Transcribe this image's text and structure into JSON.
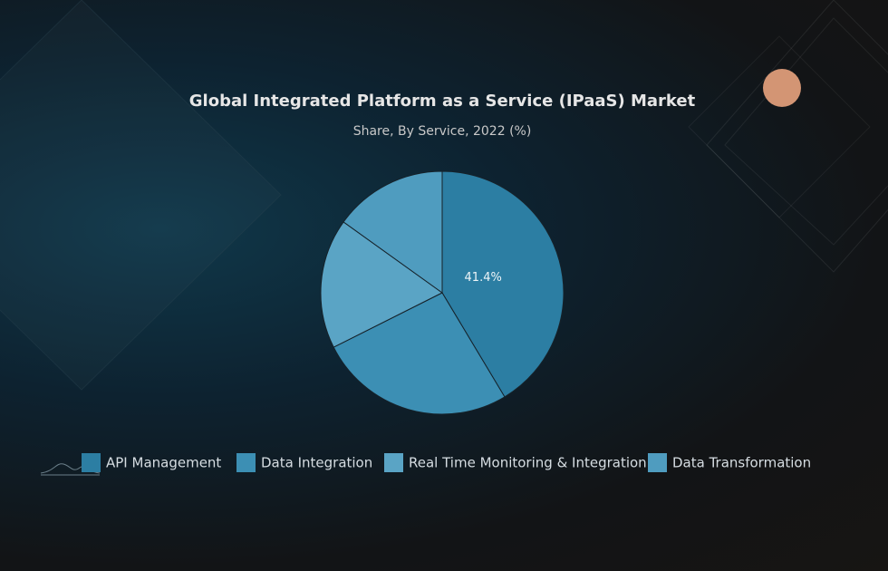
{
  "chart_data": {
    "type": "pie",
    "title": "Global Integrated Platform as a Service (IPaaS) Market",
    "subtitle": "Share, By Service, 2022 (%)",
    "categories": [
      "API Management",
      "Data Integration",
      "Real Time Monitoring & Integration",
      "Data Transformation"
    ],
    "values": [
      41.4,
      26.2,
      17.3,
      15.1
    ],
    "value_labels": [
      "41.4%",
      null,
      null,
      null
    ],
    "colors": [
      "#2c7ea3",
      "#3c8fb4",
      "#5aa4c5",
      "#4f9cbf"
    ],
    "legend": "bottom"
  }
}
